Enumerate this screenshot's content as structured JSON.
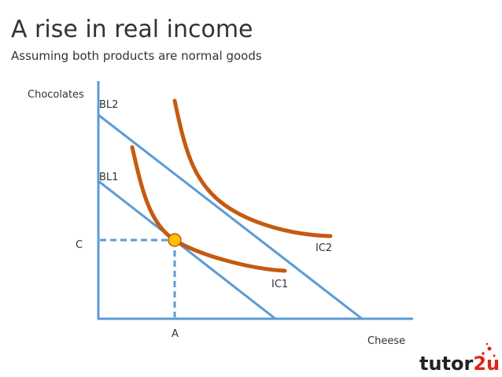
{
  "header": {
    "title": "A rise in real income",
    "subtitle": "Assuming both products are normal goods"
  },
  "axes": {
    "y_label": "Chocolates",
    "x_label": "Cheese"
  },
  "budget_lines": [
    {
      "label": "BL2"
    },
    {
      "label": "BL1"
    }
  ],
  "indifference_curves": [
    {
      "label": "IC2"
    },
    {
      "label": "IC1"
    }
  ],
  "equilibrium": {
    "y_label": "C",
    "x_label": "A"
  },
  "logo": {
    "text": "tutor",
    "accent": "2u"
  }
}
